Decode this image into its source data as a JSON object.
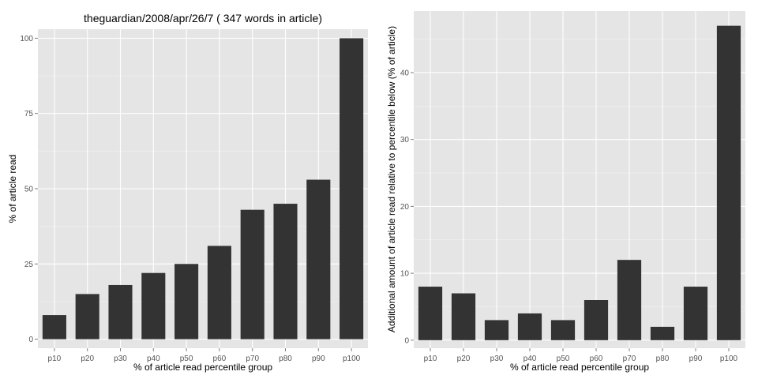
{
  "chart_data": [
    {
      "type": "bar",
      "title": "theguardian/2008/apr/26/7 ( 347 words in article)",
      "xlabel": "% of article read percentile group",
      "ylabel": "% of article read",
      "categories": [
        "p10",
        "p20",
        "p30",
        "p40",
        "p50",
        "p60",
        "p70",
        "p80",
        "p90",
        "p100"
      ],
      "values": [
        8,
        15,
        18,
        22,
        25,
        31,
        43,
        45,
        53,
        100
      ],
      "ylim": [
        -3,
        103
      ],
      "yticks": [
        0,
        25,
        50,
        75,
        100
      ],
      "grid": true
    },
    {
      "type": "bar",
      "title": "",
      "xlabel": "% of article read percentile group",
      "ylabel": "Additional amount of article read relative to percentile below (% of article)",
      "categories": [
        "p10",
        "p20",
        "p30",
        "p40",
        "p50",
        "p60",
        "p70",
        "p80",
        "p90",
        "p100"
      ],
      "values": [
        8,
        7,
        3,
        4,
        3,
        6,
        12,
        2,
        8,
        47
      ],
      "ylim": [
        -1.2,
        49.2
      ],
      "yticks": [
        0,
        10,
        20,
        30,
        40
      ],
      "grid": true
    }
  ]
}
